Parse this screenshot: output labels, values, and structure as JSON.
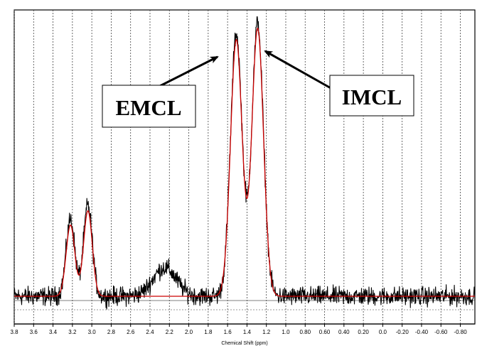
{
  "chart_data": {
    "type": "line",
    "xlabel": "Chemical Shift (ppm)",
    "xlim": [
      3.8,
      -0.95
    ],
    "x_reversed": true,
    "ylim": [
      0,
      100
    ],
    "grid": "vertical dashed lines at every tick",
    "x_ticks": [
      "3.8",
      "3.6",
      "3.4",
      "3.2",
      "3.0",
      "2.8",
      "2.6",
      "2.4",
      "2.2",
      "2.0",
      "1.8",
      "1.6",
      "1.4",
      "1.2",
      "1.0",
      "0.80",
      "0.60",
      "0.40",
      "0.20",
      "0.0",
      "-0.20",
      "-0.40",
      "-0.60",
      "-0.80"
    ],
    "series": [
      {
        "color": "#000000",
        "style": "noisy measured spectrum",
        "peaks": [
          {
            "x": 3.22,
            "y": 27
          },
          {
            "x": 3.04,
            "y": 32
          },
          {
            "x": 2.25,
            "y": 10
          },
          {
            "x": 1.51,
            "y": 92
          },
          {
            "x": 1.29,
            "y": 96
          }
        ]
      },
      {
        "color": "#cc0000",
        "style": "smooth fitted curve",
        "peaks": [
          {
            "x": 3.22,
            "y": 25
          },
          {
            "x": 3.04,
            "y": 30
          },
          {
            "x": 1.51,
            "y": 90
          },
          {
            "x": 1.29,
            "y": 94
          }
        ]
      }
    ],
    "annotations": [
      {
        "text": "EMCL",
        "points_to_x": 1.51
      },
      {
        "text": "IMCL",
        "points_to_x": 1.29
      }
    ]
  }
}
